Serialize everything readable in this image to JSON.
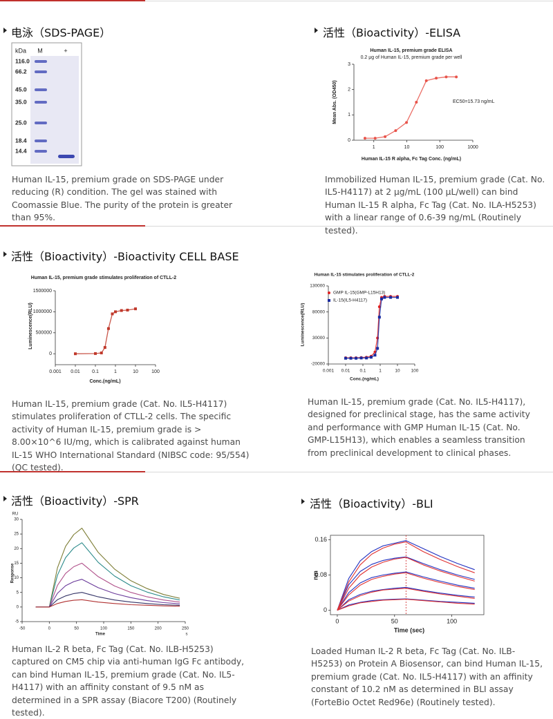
{
  "sections": [
    {
      "title": "电泳（SDS-PAGE）",
      "figure": {
        "type": "gel",
        "lane_labels": [
          "kDa",
          "M",
          "+"
        ],
        "markers": [
          "116.0",
          "66.2",
          "45.0",
          "35.0",
          "25.0",
          "18.4",
          "14.4"
        ]
      },
      "caption": "Human IL-15, premium grade on SDS-PAGE under reducing (R) condition. The gel was stained with Coomassie Blue. The purity of the protein is greater than 95%."
    },
    {
      "title": "活性（Bioactivity）-ELISA",
      "figure": {
        "type": "scatter",
        "title": "Human IL-15, premium grade ELISA",
        "subtitle": "0.2 μg of Human IL-15, premium grade per well",
        "x_label": "Human IL-15 R alpha, Fc Tag Conc. (ng/mL)",
        "y_label": "Mean Abs. (OD450)",
        "annotation": "EC50=15.73 ng/mL",
        "xscale": "log",
        "xlim": [
          0.25,
          1000
        ],
        "xticks": [
          1,
          10,
          100,
          1000
        ],
        "ylim": [
          0,
          3
        ],
        "yticks": [
          0,
          1,
          2,
          3
        ],
        "x": [
          0.54,
          1.1,
          2.2,
          4.6,
          9.8,
          19.5,
          39,
          78,
          156,
          316
        ],
        "series": [
          {
            "color": "#e8534a",
            "marker": "circle",
            "values": [
              0.08,
              0.08,
              0.14,
              0.38,
              0.7,
              1.5,
              2.35,
              2.45,
              2.5,
              2.5
            ]
          }
        ]
      },
      "caption": "Immobilized Human IL-15, premium grade (Cat. No. IL5-H4117) at 2 μg/mL (100 μL/well) can bind Human IL-15 R alpha, Fc Tag (Cat. No. ILA-H5253) with a linear range of 0.6-39 ng/mL (Routinely tested)."
    },
    {
      "title": "活性（Bioactivity）-Bioactivity CELL BASE",
      "figure": {
        "type": "scatter",
        "title": "Human IL-15, premium grade stimulates proliferation of CTLL-2",
        "x_label": "Conc.(ng/mL)",
        "y_label": "Luminescence(RLU)",
        "xscale": "log",
        "xlim": [
          0.001,
          100
        ],
        "xticks": [
          0.001,
          0.01,
          0.1,
          1,
          10,
          100
        ],
        "ylim": [
          -260000,
          1500000
        ],
        "yticks": [
          0,
          500000,
          1000000,
          1500000
        ],
        "x": [
          0.01,
          0.1,
          0.2,
          0.3,
          0.45,
          0.7,
          1,
          2,
          4,
          10
        ],
        "series": [
          {
            "color": "#c0392b",
            "marker": "square",
            "values": [
              0,
              5000,
              20000,
              150000,
              600000,
              950000,
              1000000,
              1030000,
              1040000,
              1070000
            ]
          }
        ]
      },
      "caption": "Human IL-15, premium grade (Cat. No. IL5-H4117) stimulates proliferation of CTLL-2 cells. The specific activity of Human IL-15, premium grade is > 8.00×10^6 IU/mg, which is calibrated against human IL-15 WHO International Standard (NIBSC code: 95/554) (QC tested)."
    },
    {
      "figure": {
        "type": "scatter",
        "title": "Human IL-15 stimulates proliferation of CTLL-2",
        "x_label": "Conc.(ng/mL)",
        "y_label": "Luminescence(RLU)",
        "xscale": "log",
        "xlim": [
          0.001,
          100
        ],
        "xticks": [
          0.001,
          0.01,
          0.1,
          1,
          10,
          100
        ],
        "ylim": [
          -20000,
          130000
        ],
        "yticks": [
          -20000,
          30000,
          80000,
          130000
        ],
        "x": [
          0.01,
          0.02,
          0.04,
          0.08,
          0.16,
          0.3,
          0.5,
          0.7,
          0.9,
          1.2,
          1.8,
          4,
          10
        ],
        "series": [
          {
            "name": "GMP IL-15(GMP-L15H13)",
            "color": "#e02020",
            "marker": "circle",
            "values": [
              -8000,
              -8000,
              -8000,
              -7500,
              -7000,
              -5000,
              3000,
              30000,
              90000,
              108000,
              110000,
              110000,
              110000
            ]
          },
          {
            "name": "IL-15(IL5-H4117)",
            "color": "#1a2aa0",
            "marker": "square",
            "values": [
              -9000,
              -9000,
              -9000,
              -8500,
              -8500,
              -7000,
              -3000,
              10000,
              70000,
              105000,
              108000,
              108000,
              108000
            ]
          }
        ],
        "legend": "upper right"
      },
      "caption": "Human IL-15, premium grade (Cat. No. IL5-H4117), designed for preclinical stage, has the same activity and performance with GMP Human IL-15 (Cat. No. GMP-L15H13), which enables a seamless transition from preclinical development to clinical phases."
    },
    {
      "title": "活性（Bioactivity）-SPR",
      "figure": {
        "type": "line",
        "x_label": "Time",
        "y_label": "Response",
        "x_unit": "s",
        "y_unit": "RU",
        "xlim": [
          -50,
          250
        ],
        "xticks": [
          -50,
          0,
          50,
          100,
          150,
          200,
          250
        ],
        "ylim": [
          -5,
          30
        ],
        "yticks": [
          -5,
          0,
          5,
          10,
          15,
          20,
          25,
          30
        ],
        "x": [
          -25,
          0,
          15,
          30,
          45,
          60,
          90,
          120,
          150,
          180,
          210,
          240
        ],
        "series": [
          {
            "color": "#7d7d35",
            "values": [
              0,
              0,
              13.4,
              20.8,
              24.8,
              27,
              18.7,
              13,
              9,
              6.3,
              4.3,
              3.0
            ]
          },
          {
            "color": "#2a8a8a",
            "values": [
              0,
              0,
              10.9,
              16.9,
              20.2,
              22,
              15.3,
              10.6,
              7.3,
              5.1,
              3.5,
              2.4
            ]
          },
          {
            "color": "#b0508a",
            "values": [
              0,
              0,
              7.4,
              11.5,
              13.8,
              15,
              10.4,
              7.2,
              5,
              3.5,
              2.4,
              1.7
            ]
          },
          {
            "color": "#6a3a9a",
            "values": [
              0,
              0,
              4.7,
              7.3,
              8.7,
              9.5,
              6.6,
              4.6,
              3.2,
              2.2,
              1.5,
              1.1
            ]
          },
          {
            "color": "#333366",
            "values": [
              0,
              0,
              2.5,
              3.8,
              4.6,
              5,
              3.5,
              2.4,
              1.7,
              1.2,
              0.8,
              0.6
            ]
          },
          {
            "color": "#b03030",
            "values": [
              0,
              0,
              1.2,
              1.9,
              2.3,
              2.5,
              1.7,
              1.2,
              0.8,
              0.6,
              0.4,
              0.3
            ]
          }
        ]
      },
      "caption": "Human IL-2 R beta, Fc Tag (Cat. No. ILB-H5253) captured on CM5 chip via anti-human IgG Fc antibody, can bind Human IL-15, premium grade (Cat. No. IL5-H4117) with an affinity constant of 9.5 nM as determined in a SPR assay (Biacore T200) (Routinely tested)."
    },
    {
      "title": "活性（Bioactivity）-BLI",
      "figure": {
        "type": "line",
        "x_label": "Time (sec)",
        "y_label": "nm",
        "frame": true,
        "vline": 60,
        "xlim": [
          -6,
          128
        ],
        "xticks": [
          0,
          50,
          100
        ],
        "ylim": [
          -0.01,
          0.17
        ],
        "yticks": [
          0,
          0.08,
          0.16
        ],
        "x": [
          0,
          10,
          20,
          30,
          40,
          50,
          60,
          75,
          90,
          105,
          120
        ],
        "series": [
          {
            "color": "#2030c0",
            "values": [
              0,
              0.072,
              0.112,
              0.133,
              0.146,
              0.152,
              0.158,
              0.14,
              0.122,
              0.106,
              0.092
            ]
          },
          {
            "color": "#2030c0",
            "values": [
              0,
              0.058,
              0.088,
              0.104,
              0.113,
              0.118,
              0.121,
              0.106,
              0.092,
              0.08,
              0.07
            ]
          },
          {
            "color": "#2030c0",
            "values": [
              0,
              0.04,
              0.062,
              0.074,
              0.08,
              0.084,
              0.087,
              0.076,
              0.066,
              0.057,
              0.05
            ]
          },
          {
            "color": "#2030c0",
            "values": [
              0,
              0.024,
              0.036,
              0.043,
              0.047,
              0.05,
              0.052,
              0.045,
              0.039,
              0.034,
              0.03
            ]
          },
          {
            "color": "#2030c0",
            "values": [
              0,
              0.012,
              0.018,
              0.022,
              0.024,
              0.025,
              0.026,
              0.023,
              0.02,
              0.018,
              0.016
            ]
          },
          {
            "color": "#e03030",
            "values": [
              0,
              0.064,
              0.103,
              0.127,
              0.141,
              0.15,
              0.155,
              0.133,
              0.115,
              0.099,
              0.085
            ]
          },
          {
            "color": "#e03030",
            "values": [
              0,
              0.05,
              0.08,
              0.098,
              0.109,
              0.116,
              0.12,
              0.103,
              0.089,
              0.077,
              0.066
            ]
          },
          {
            "color": "#e03030",
            "values": [
              0,
              0.035,
              0.057,
              0.07,
              0.077,
              0.082,
              0.085,
              0.073,
              0.063,
              0.054,
              0.047
            ]
          },
          {
            "color": "#e03030",
            "values": [
              0,
              0.021,
              0.033,
              0.041,
              0.046,
              0.048,
              0.05,
              0.043,
              0.037,
              0.032,
              0.027
            ]
          },
          {
            "color": "#e03030",
            "values": [
              0,
              0.01,
              0.017,
              0.02,
              0.023,
              0.024,
              0.025,
              0.022,
              0.019,
              0.016,
              0.014
            ]
          }
        ]
      },
      "caption": "Loaded Human IL-2 R beta, Fc Tag (Cat. No. ILB-H5253) on Protein A Biosensor, can bind Human IL-15, premium grade (Cat. No. IL5-H4117) with an affinity constant of 10.2 nM as determined in BLI assay (ForteBio Octet Red96e) (Routinely tested)."
    }
  ]
}
